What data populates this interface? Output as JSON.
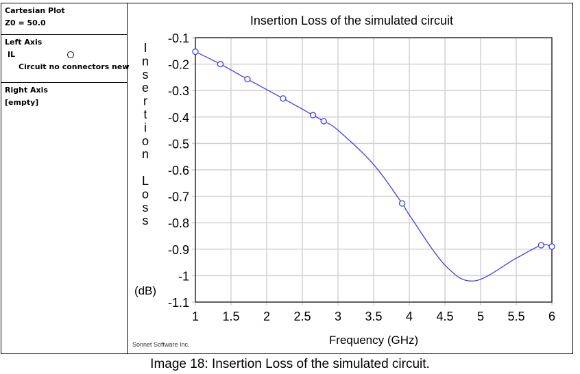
{
  "side_panel": {
    "header_title": "Cartesian Plot",
    "z0": "Z0 = 50.0",
    "left_axis_label": "Left Axis",
    "left_trace_name": "IL",
    "left_trace_marker": "circle-open",
    "left_trace_circuit": "Circuit no connectors new",
    "right_axis_label": "Right Axis",
    "right_axis_value": "[empty]"
  },
  "watermark": "Sonnet Software Inc.",
  "caption": "Image 18: Insertion Loss of the simulated circuit.",
  "chart_data": {
    "type": "line",
    "title": "Insertion Loss of the simulated circuit",
    "xlabel": "Frequency (GHz)",
    "ylabel_letters": [
      "I",
      "n",
      "s",
      "e",
      "r",
      "t",
      "i",
      "o",
      "n",
      "",
      "L",
      "o",
      "s",
      "s"
    ],
    "yunit": "(dB)",
    "xlim": [
      1,
      6
    ],
    "ylim": [
      -1.1,
      -0.1
    ],
    "xticks": [
      "1",
      "1.5",
      "2",
      "2.5",
      "3",
      "3.5",
      "4",
      "4.5",
      "5",
      "5.5",
      "6"
    ],
    "yticks": [
      "-0.1",
      "-0.2",
      "-0.3",
      "-0.4",
      "-0.5",
      "-0.6",
      "-0.7",
      "-0.8",
      "-0.9",
      "-1",
      "-1.1"
    ],
    "grid": true,
    "line_color": "#3b3bf0",
    "series": [
      {
        "name": "IL",
        "curve": {
          "x": [
            1,
            1.35,
            1.73,
            2.23,
            2.65,
            2.8,
            3.0,
            3.5,
            3.9,
            4.0,
            4.5,
            4.91,
            5.5,
            5.85,
            6.0
          ],
          "y": [
            -0.153,
            -0.2,
            -0.257,
            -0.33,
            -0.393,
            -0.416,
            -0.45,
            -0.58,
            -0.727,
            -0.77,
            -0.96,
            -1.02,
            -0.934,
            -0.885,
            -0.89
          ]
        },
        "markers": {
          "x": [
            1,
            1.35,
            1.73,
            2.23,
            2.65,
            2.8,
            3.9,
            5.85,
            6.0
          ],
          "y": [
            -0.153,
            -0.2,
            -0.257,
            -0.33,
            -0.393,
            -0.416,
            -0.727,
            -0.885,
            -0.89
          ]
        }
      }
    ]
  }
}
